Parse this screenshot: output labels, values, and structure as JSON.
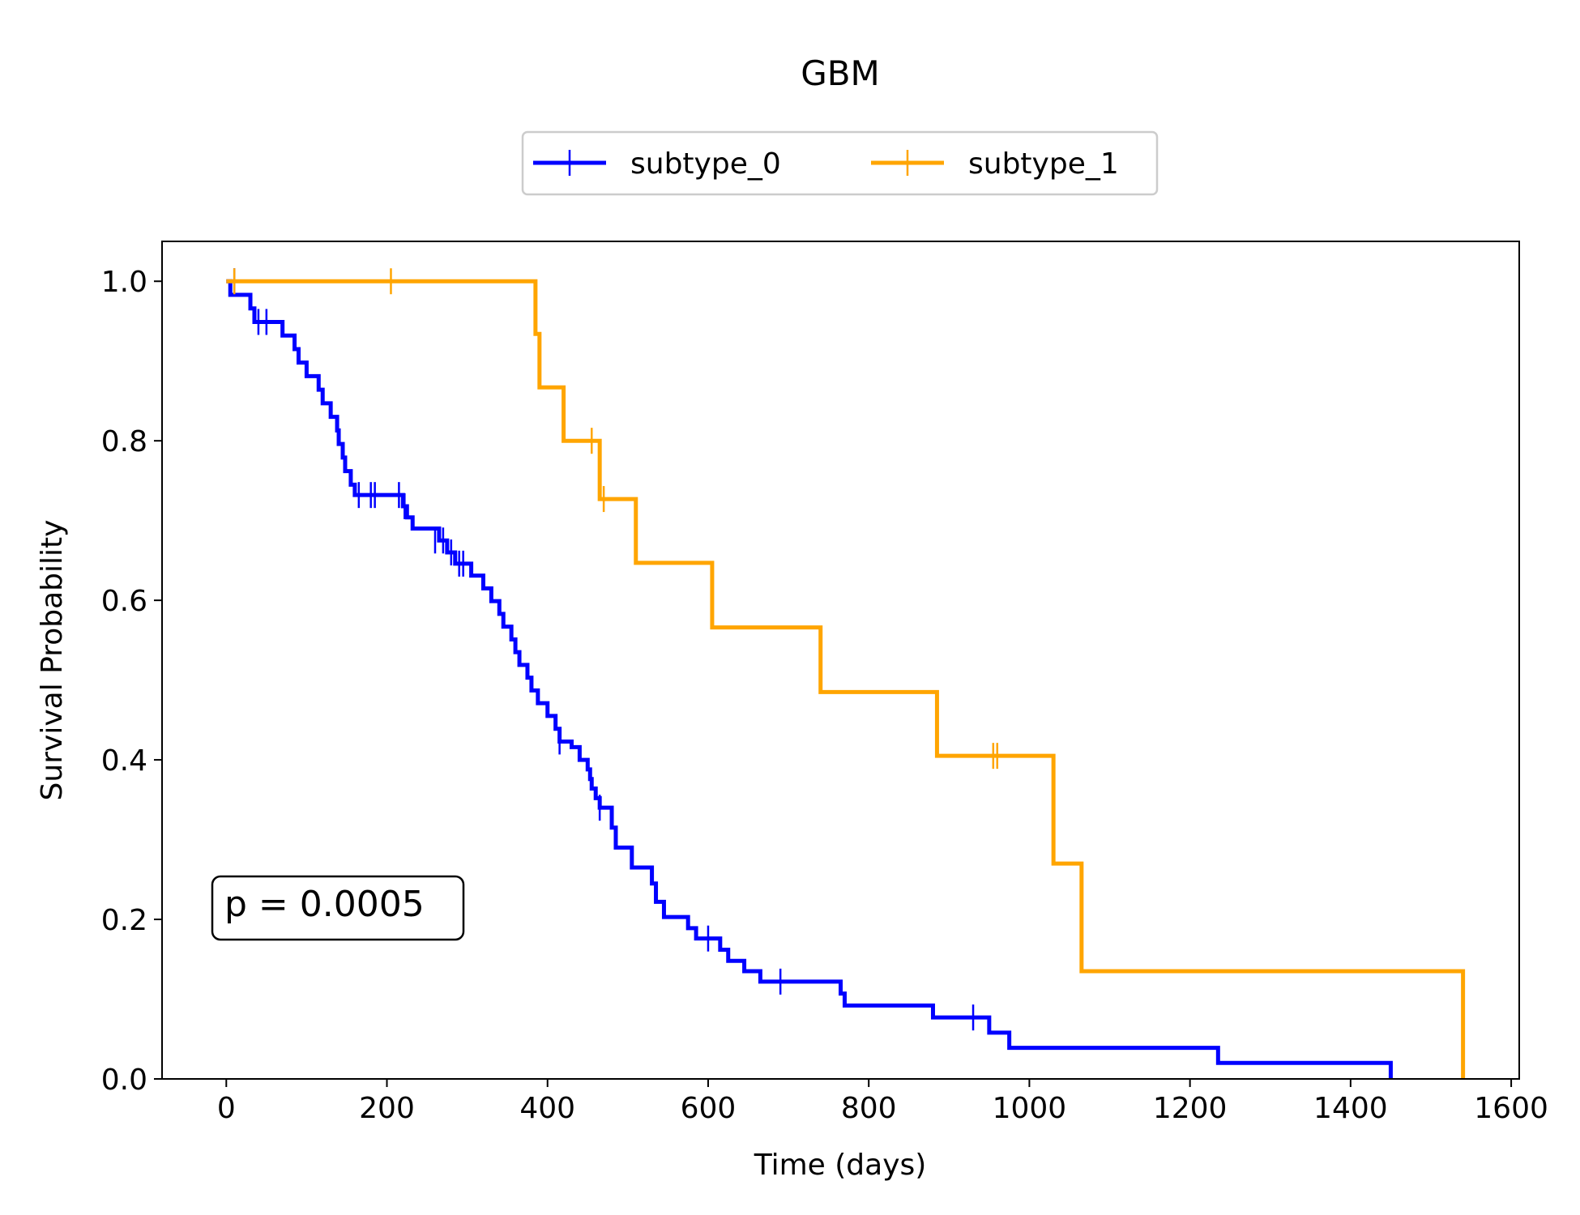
{
  "chart_data": {
    "type": "line",
    "subtype": "kaplan-meier-step",
    "title": "GBM",
    "xlabel": "Time (days)",
    "ylabel": "Survival Probability",
    "xlim": [
      -80,
      1610
    ],
    "ylim": [
      0,
      1.05
    ],
    "xticks": [
      0,
      200,
      400,
      600,
      800,
      1000,
      1200,
      1400,
      1600
    ],
    "yticks": [
      0.0,
      0.2,
      0.4,
      0.6,
      0.8,
      1.0
    ],
    "xtick_labels": [
      "0",
      "200",
      "400",
      "600",
      "800",
      "1000",
      "1200",
      "1400",
      "1600"
    ],
    "ytick_labels": [
      "0.0",
      "0.2",
      "0.4",
      "0.6",
      "0.8",
      "1.0"
    ],
    "grid": false,
    "legend_position": "top-center",
    "annotation": "p = 0.0005",
    "series": [
      {
        "name": "subtype_0",
        "color": "#0000ff",
        "steps": [
          [
            0,
            1.0
          ],
          [
            5,
            0.983
          ],
          [
            30,
            0.966
          ],
          [
            35,
            0.949
          ],
          [
            70,
            0.932
          ],
          [
            85,
            0.915
          ],
          [
            90,
            0.898
          ],
          [
            100,
            0.881
          ],
          [
            115,
            0.864
          ],
          [
            120,
            0.847
          ],
          [
            130,
            0.83
          ],
          [
            138,
            0.813
          ],
          [
            140,
            0.796
          ],
          [
            145,
            0.779
          ],
          [
            148,
            0.762
          ],
          [
            155,
            0.745
          ],
          [
            160,
            0.732
          ],
          [
            220,
            0.718
          ],
          [
            225,
            0.704
          ],
          [
            232,
            0.69
          ],
          [
            265,
            0.675
          ],
          [
            275,
            0.66
          ],
          [
            285,
            0.646
          ],
          [
            305,
            0.631
          ],
          [
            320,
            0.615
          ],
          [
            330,
            0.599
          ],
          [
            340,
            0.583
          ],
          [
            345,
            0.567
          ],
          [
            355,
            0.551
          ],
          [
            360,
            0.535
          ],
          [
            365,
            0.519
          ],
          [
            375,
            0.503
          ],
          [
            380,
            0.487
          ],
          [
            388,
            0.471
          ],
          [
            400,
            0.455
          ],
          [
            410,
            0.439
          ],
          [
            415,
            0.423
          ],
          [
            430,
            0.416
          ],
          [
            440,
            0.4
          ],
          [
            450,
            0.388
          ],
          [
            453,
            0.376
          ],
          [
            455,
            0.364
          ],
          [
            460,
            0.352
          ],
          [
            465,
            0.34
          ],
          [
            480,
            0.315
          ],
          [
            485,
            0.29
          ],
          [
            505,
            0.265
          ],
          [
            530,
            0.245
          ],
          [
            535,
            0.222
          ],
          [
            545,
            0.203
          ],
          [
            575,
            0.189
          ],
          [
            585,
            0.176
          ],
          [
            615,
            0.162
          ],
          [
            625,
            0.148
          ],
          [
            645,
            0.135
          ],
          [
            665,
            0.122
          ],
          [
            765,
            0.107
          ],
          [
            770,
            0.092
          ],
          [
            880,
            0.077
          ],
          [
            950,
            0.058
          ],
          [
            975,
            0.039
          ],
          [
            1235,
            0.02
          ],
          [
            1450,
            0.0
          ]
        ],
        "censored": [
          [
            10,
            1.0
          ],
          [
            40,
            0.949
          ],
          [
            50,
            0.949
          ],
          [
            165,
            0.732
          ],
          [
            180,
            0.732
          ],
          [
            185,
            0.732
          ],
          [
            215,
            0.732
          ],
          [
            222,
            0.718
          ],
          [
            260,
            0.675
          ],
          [
            270,
            0.675
          ],
          [
            280,
            0.66
          ],
          [
            290,
            0.646
          ],
          [
            295,
            0.646
          ],
          [
            415,
            0.423
          ],
          [
            465,
            0.34
          ],
          [
            600,
            0.176
          ],
          [
            690,
            0.122
          ],
          [
            930,
            0.077
          ]
        ]
      },
      {
        "name": "subtype_1",
        "color": "#ffa500",
        "steps": [
          [
            0,
            1.0
          ],
          [
            385,
            0.934
          ],
          [
            390,
            0.867
          ],
          [
            420,
            0.8
          ],
          [
            465,
            0.727
          ],
          [
            510,
            0.647
          ],
          [
            605,
            0.566
          ],
          [
            740,
            0.485
          ],
          [
            885,
            0.405
          ],
          [
            1030,
            0.27
          ],
          [
            1065,
            0.135
          ],
          [
            1540,
            0.0
          ]
        ],
        "censored": [
          [
            10,
            1.0
          ],
          [
            205,
            1.0
          ],
          [
            455,
            0.8
          ],
          [
            470,
            0.727
          ],
          [
            955,
            0.405
          ],
          [
            960,
            0.405
          ]
        ]
      }
    ]
  }
}
